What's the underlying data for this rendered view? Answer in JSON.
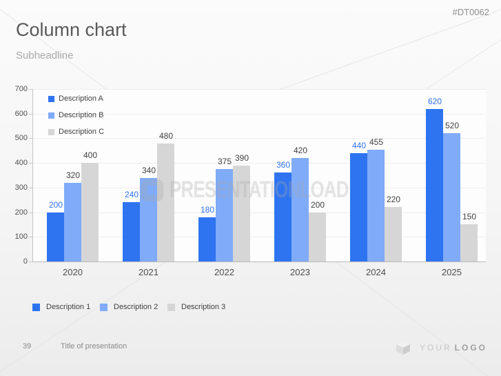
{
  "tag": "#DT0062",
  "header": {
    "title": "Column chart",
    "subtitle": "Subheadline"
  },
  "watermark": {
    "text": "PRESENTATIONLOAD"
  },
  "chart_data": {
    "type": "bar",
    "categories": [
      "2020",
      "2021",
      "2022",
      "2023",
      "2024",
      "2025"
    ],
    "series": [
      {
        "name": "Description A",
        "color": "#2E74F0",
        "label_color": "#2E74F0",
        "values": [
          200,
          240,
          180,
          360,
          440,
          620
        ]
      },
      {
        "name": "Description B",
        "color": "#7FABF8",
        "label_color": "#404040",
        "values": [
          320,
          340,
          375,
          420,
          455,
          520
        ]
      },
      {
        "name": "Description C",
        "color": "#D6D6D6",
        "label_color": "#404040",
        "values": [
          400,
          480,
          390,
          200,
          220,
          150
        ]
      }
    ],
    "ylim": [
      0,
      700
    ],
    "yticks": [
      0,
      100,
      200,
      300,
      400,
      500,
      600,
      700
    ],
    "grid": true,
    "legend_top_position": "inside-top-left",
    "legend_bottom": [
      {
        "label": "Description 1",
        "color": "#2E74F0"
      },
      {
        "label": "Description 2",
        "color": "#7FABF8"
      },
      {
        "label": "Description 3",
        "color": "#D6D6D6"
      }
    ]
  },
  "footer": {
    "page_number": "39",
    "presentation_title": "Title of presentation",
    "logo_your": "YOUR",
    "logo_logo": "LOGO"
  }
}
